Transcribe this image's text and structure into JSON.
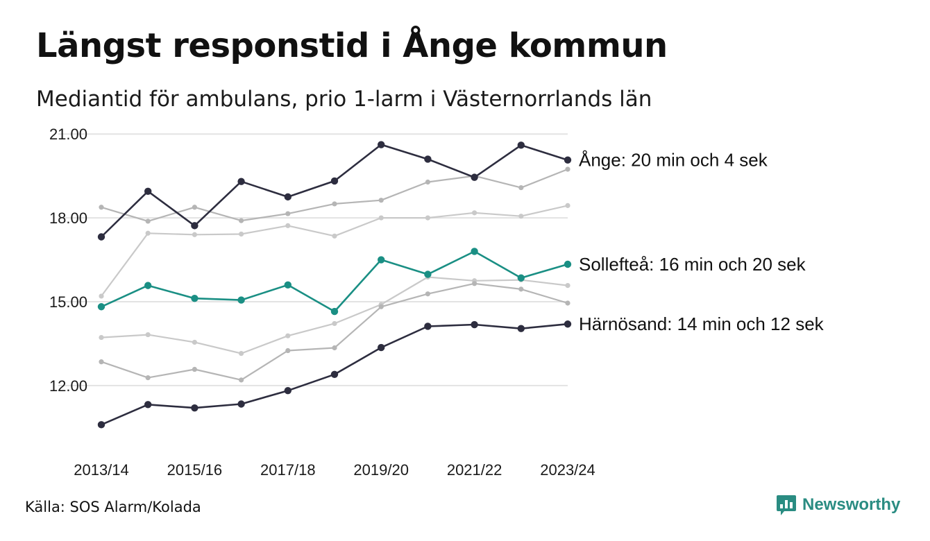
{
  "title": "Längst responstid i Ånge kommun",
  "subtitle": "Mediantid för ambulans, prio 1-larm i Västernorrlands län",
  "source": "Källa: SOS Alarm/Kolada",
  "brand": "Newsworthy",
  "colors": {
    "dark": "#2d2d3f",
    "teal": "#1a8f84",
    "gray1": "#b5b5b5",
    "gray2": "#c9c9c9",
    "grid": "#e3e3e3",
    "brand": "#2a8c82"
  },
  "chart_data": {
    "type": "line",
    "x": [
      "2013/14",
      "2014/15",
      "2015/16",
      "2016/17",
      "2017/18",
      "2018/19",
      "2019/20",
      "2020/21",
      "2021/22",
      "2022/23",
      "2023/24"
    ],
    "x_tick_labels": [
      "2013/14",
      "2015/16",
      "2017/18",
      "2019/20",
      "2021/22",
      "2023/24"
    ],
    "y_ticks": [
      12,
      15,
      18,
      21
    ],
    "y_tick_labels": [
      "12.00",
      "15.00",
      "18.00",
      "21.00"
    ],
    "ylim": [
      9.6,
      21.4
    ],
    "grid": true,
    "series": [
      {
        "name": "",
        "style": "gray2",
        "values": [
          15.2,
          17.45,
          17.4,
          17.42,
          17.72,
          17.35,
          18.0,
          18.0,
          18.18,
          18.06,
          18.44
        ]
      },
      {
        "name": "",
        "style": "gray1",
        "values": [
          18.38,
          17.88,
          18.38,
          17.9,
          18.15,
          18.5,
          18.63,
          19.28,
          19.5,
          19.08,
          19.74
        ]
      },
      {
        "name": "",
        "style": "gray2",
        "values": [
          13.72,
          13.82,
          13.55,
          13.15,
          13.78,
          14.22,
          14.9,
          15.88,
          15.75,
          15.78,
          15.58
        ]
      },
      {
        "name": "",
        "style": "gray1",
        "values": [
          12.85,
          12.28,
          12.58,
          12.2,
          13.25,
          13.35,
          14.82,
          15.28,
          15.65,
          15.45,
          14.95
        ]
      },
      {
        "name": "",
        "style": "dark",
        "values": [
          10.6,
          11.32,
          11.2,
          11.34,
          11.82,
          12.4,
          13.36,
          14.12,
          14.18,
          14.04,
          14.2
        ],
        "label": "Härnösand: 14 min och 12 sek"
      },
      {
        "name": "",
        "style": "teal",
        "values": [
          14.82,
          15.58,
          15.12,
          15.06,
          15.6,
          14.65,
          16.5,
          15.98,
          16.8,
          15.85,
          16.34
        ],
        "label": "Sollefteå: 16 min och 20 sek"
      },
      {
        "name": "",
        "style": "dark",
        "values": [
          17.32,
          18.95,
          17.72,
          19.3,
          18.75,
          19.32,
          20.62,
          20.1,
          19.45,
          20.6,
          20.07
        ],
        "label": "Ånge: 20 min och 4 sek"
      }
    ]
  }
}
